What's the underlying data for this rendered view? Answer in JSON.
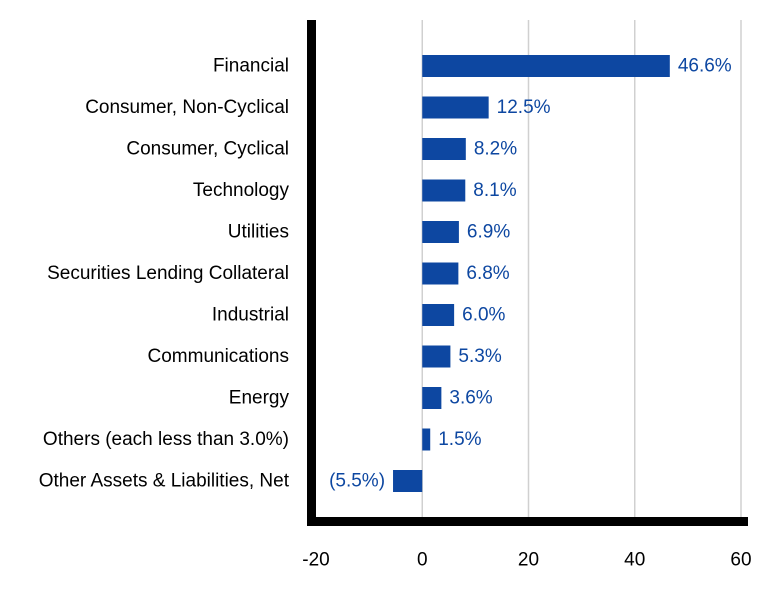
{
  "chart_data": {
    "type": "bar",
    "orientation": "horizontal",
    "categories": [
      "Financial",
      "Consumer, Non-Cyclical",
      "Consumer, Cyclical",
      "Technology",
      "Utilities",
      "Securities Lending Collateral",
      "Industrial",
      "Communications",
      "Energy",
      "Others (each less than 3.0%)",
      "Other Assets & Liabilities, Net"
    ],
    "values": [
      46.6,
      12.5,
      8.2,
      8.1,
      6.9,
      6.8,
      6.0,
      5.3,
      3.6,
      1.5,
      -5.5
    ],
    "value_labels": [
      "46.6%",
      "12.5%",
      "8.2%",
      "8.1%",
      "6.9%",
      "6.8%",
      "6.0%",
      "5.3%",
      "3.6%",
      "1.5%",
      "(5.5%)"
    ],
    "title": "",
    "xlabel": "",
    "ylabel": "",
    "xlim": [
      -20,
      60
    ],
    "xticks": [
      -20,
      0,
      20,
      40,
      60
    ],
    "xtick_labels": [
      "-20",
      "0",
      "20",
      "40",
      "60"
    ],
    "grid": "vertical",
    "legend": "none",
    "colors": {
      "bar": "#0d47a1",
      "value_label": "#0d47a1",
      "category_label": "#000000",
      "tick_label": "#000000",
      "grid": "#d0d0d0",
      "axis": "#000000"
    }
  }
}
